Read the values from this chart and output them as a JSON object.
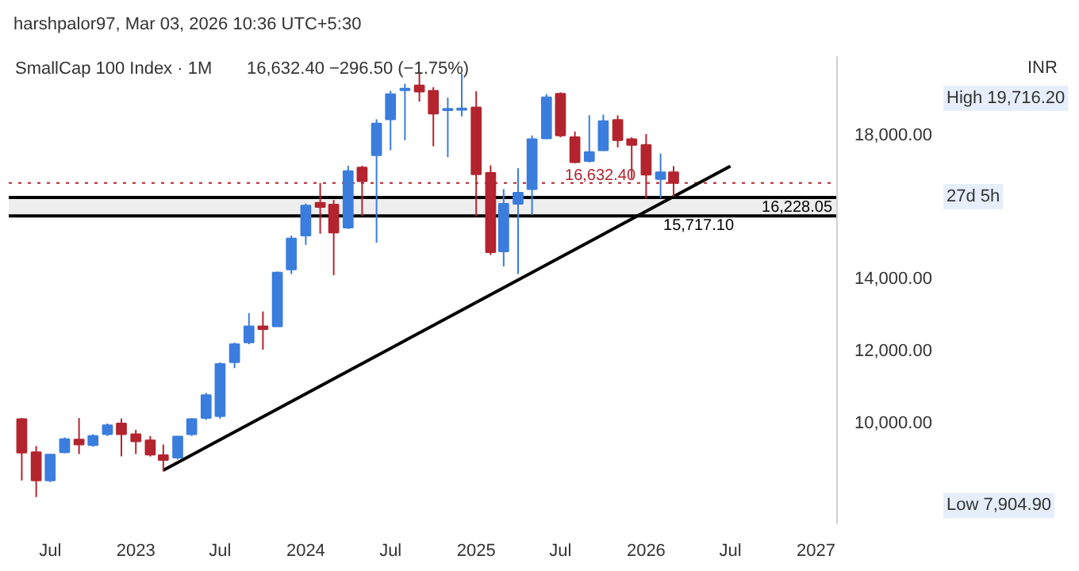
{
  "chart_data": {
    "type": "candlestick",
    "title": "SmallCap 100 Index · 1M",
    "subtitle": "16,632.40  −296.50 (−1.75%)",
    "x": [
      "2022-05",
      "2022-06",
      "2022-07",
      "2022-08",
      "2022-09",
      "2022-10",
      "2022-11",
      "2022-12",
      "2023-01",
      "2023-02",
      "2023-03",
      "2023-04",
      "2023-05",
      "2023-06",
      "2023-07",
      "2023-08",
      "2023-09",
      "2023-10",
      "2023-11",
      "2023-12",
      "2024-01",
      "2024-02",
      "2024-03",
      "2024-04",
      "2024-05",
      "2024-06",
      "2024-07",
      "2024-08",
      "2024-09",
      "2024-10",
      "2024-11",
      "2024-12",
      "2025-01",
      "2025-02",
      "2025-03",
      "2025-04",
      "2025-05",
      "2025-06",
      "2025-07",
      "2025-08",
      "2025-09",
      "2025-10",
      "2025-11",
      "2025-12",
      "2026-01",
      "2026-02",
      "2026-03"
    ],
    "ohlc": [
      [
        10070,
        10100,
        8365,
        9140
      ],
      [
        9150,
        9320,
        7904.9,
        8370
      ],
      [
        8370,
        9100,
        8320,
        9085
      ],
      [
        9150,
        9560,
        9120,
        9515
      ],
      [
        9500,
        10100,
        9100,
        9365
      ],
      [
        9350,
        9650,
        9300,
        9600
      ],
      [
        9650,
        9950,
        9600,
        9900
      ],
      [
        9950,
        10085,
        9035,
        9650
      ],
      [
        9650,
        9770,
        9100,
        9450
      ],
      [
        9480,
        9600,
        9030,
        9085
      ],
      [
        9065,
        9365,
        8615,
        8935
      ],
      [
        9000,
        9600,
        8950,
        9585
      ],
      [
        9650,
        10100,
        9600,
        10070
      ],
      [
        10100,
        10800,
        10050,
        10735
      ],
      [
        10150,
        11650,
        10080,
        11600
      ],
      [
        11650,
        12200,
        11485,
        12150
      ],
      [
        12200,
        13015,
        12150,
        12650
      ],
      [
        12650,
        13060,
        12000,
        12570
      ],
      [
        12650,
        14170,
        12640,
        14140
      ],
      [
        14230,
        15170,
        14100,
        15090
      ],
      [
        15170,
        16060,
        14910,
        16000
      ],
      [
        16080,
        16630,
        15220,
        15965
      ],
      [
        16030,
        16160,
        14070,
        15255
      ],
      [
        15390,
        17110,
        15350,
        16960
      ],
      [
        17060,
        17110,
        15700,
        16680
      ],
      [
        17400,
        18400,
        14970,
        18280
      ],
      [
        18400,
        19190,
        17540,
        19100
      ],
      [
        19210,
        19390,
        17820,
        19250
      ],
      [
        19340,
        19716.2,
        18890,
        19170
      ],
      [
        19190,
        19290,
        17650,
        18560
      ],
      [
        18650,
        19000,
        17350,
        18690
      ],
      [
        18660,
        19670,
        18480,
        18700
      ],
      [
        18730,
        19180,
        15700,
        16870
      ],
      [
        16910,
        17120,
        14630,
        14710
      ],
      [
        14730,
        16460,
        14310,
        16050
      ],
      [
        16050,
        17040,
        14100,
        16360
      ],
      [
        16460,
        17950,
        15750,
        17850
      ],
      [
        17870,
        19100,
        17850,
        19010
      ],
      [
        19110,
        19150,
        17900,
        17950
      ],
      [
        17900,
        18060,
        17180,
        17210
      ],
      [
        17240,
        18510,
        17200,
        17490
      ],
      [
        17540,
        18530,
        17520,
        18350
      ],
      [
        18380,
        18510,
        17620,
        17820
      ],
      [
        17850,
        17900,
        16750,
        17690
      ],
      [
        17690,
        17990,
        16200,
        16860
      ],
      [
        16740,
        17450,
        16210,
        16928.9
      ],
      [
        16928.9,
        17100,
        16250,
        16632.4
      ]
    ],
    "colors": [
      "#b3242f",
      "#b3242f",
      "#3b7ddd",
      "#3b7ddd",
      "#b3242f",
      "#3b7ddd",
      "#3b7ddd",
      "#b3242f",
      "#b3242f",
      "#b3242f",
      "#b3242f",
      "#3b7ddd",
      "#3b7ddd",
      "#3b7ddd",
      "#3b7ddd",
      "#3b7ddd",
      "#3b7ddd",
      "#b3242f",
      "#3b7ddd",
      "#3b7ddd",
      "#3b7ddd",
      "#b3242f",
      "#b3242f",
      "#3b7ddd",
      "#b3242f",
      "#3b7ddd",
      "#3b7ddd",
      "#3b7ddd",
      "#b3242f",
      "#b3242f",
      "#3b7ddd",
      "#3b7ddd",
      "#b3242f",
      "#b3242f",
      "#3b7ddd",
      "#3b7ddd",
      "#3b7ddd",
      "#3b7ddd",
      "#b3242f",
      "#b3242f",
      "#3b7ddd",
      "#3b7ddd",
      "#b3242f",
      "#b3242f",
      "#b3242f",
      "#3b7ddd",
      "#b3242f"
    ],
    "series": [
      {
        "type": "line",
        "color": "#000000",
        "x": [
          "2023-03",
          "2026-07"
        ],
        "values": [
          8650,
          17100
        ]
      }
    ],
    "xlim": [
      "2022-04-03",
      "2027-02-15"
    ],
    "xticks": [
      {
        "value": "2022-07",
        "label": "Jul"
      },
      {
        "value": "2023-01",
        "label": "2023"
      },
      {
        "value": "2023-07",
        "label": "Jul"
      },
      {
        "value": "2024-01",
        "label": "2024"
      },
      {
        "value": "2024-07",
        "label": "Jul"
      },
      {
        "value": "2025-01",
        "label": "2025"
      },
      {
        "value": "2025-07",
        "label": "Jul"
      },
      {
        "value": "2026-01",
        "label": "2026"
      },
      {
        "value": "2026-07",
        "label": "Jul"
      },
      {
        "value": "2027-01",
        "label": "2027"
      }
    ],
    "ylim": [
      7150,
      20150
    ],
    "yticks": [
      {
        "value": 10000,
        "label": "10,000.00"
      },
      {
        "value": 12000,
        "label": "12,000.00"
      },
      {
        "value": 14000,
        "label": "14,000.00"
      },
      {
        "value": 18000,
        "label": "18,000.00"
      }
    ],
    "bands": [
      {
        "axis": "y",
        "from": 15717.1,
        "to": 16228.05,
        "color": "#eeeeee"
      }
    ],
    "ref_lines": [
      {
        "axis": "y",
        "value": 16228.05,
        "label": "16,228.05",
        "color": "#000000",
        "line_style": "solid"
      },
      {
        "axis": "y",
        "value": 15717.1,
        "label": "15,717.10",
        "color": "#000000",
        "line_style": "solid"
      },
      {
        "axis": "y",
        "value": 16632.4,
        "label": "16,632.40",
        "color": "#b3242f",
        "line_style": "dotted"
      }
    ],
    "annotations": [
      "harshpalor97, Mar 03, 2026 10:36 UTC+5:30",
      "High 19,716.20",
      "Low 7,904.90",
      "27d 5h",
      "INR"
    ]
  }
}
